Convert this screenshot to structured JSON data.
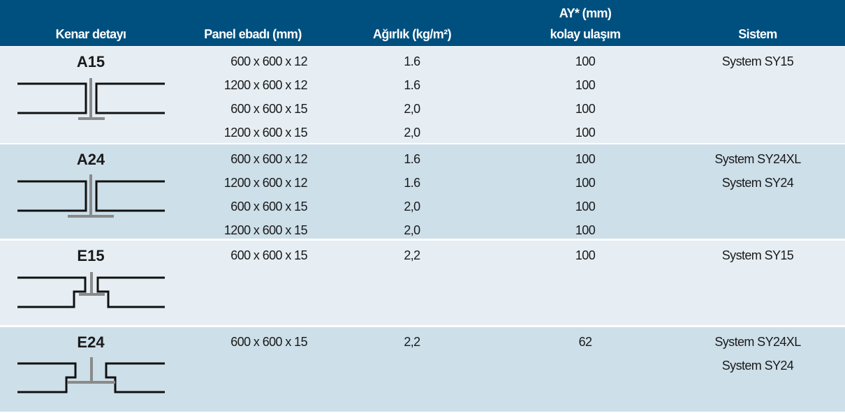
{
  "header": {
    "columns": [
      "Kenar detayı",
      "Panel ebadı (mm)",
      "Ağırlık (kg/m²)",
      [
        "AY* (mm)",
        "kolay ulaşım"
      ],
      "Sistem"
    ]
  },
  "groups": [
    {
      "label": "A15",
      "rows": [
        [
          "600 x 600 x 12",
          "1.6",
          "100"
        ],
        [
          "1200 x 600 x 12",
          "1.6",
          "100"
        ],
        [
          "600 x 600 x 15",
          "2,0",
          "100"
        ],
        [
          "1200 x 600 x 15",
          "2,0",
          "100"
        ]
      ],
      "systems": [
        "System SY15"
      ]
    },
    {
      "label": "A24",
      "rows": [
        [
          "600 x 600 x 12",
          "1.6",
          "100"
        ],
        [
          "1200 x 600 x 12",
          "1.6",
          "100"
        ],
        [
          "600 x 600 x 15",
          "2,0",
          "100"
        ],
        [
          "1200 x 600 x 15",
          "2,0",
          "100"
        ]
      ],
      "systems": [
        "System SY24XL",
        "System SY24"
      ]
    },
    {
      "label": "E15",
      "rows": [
        [
          "600 x 600 x 15",
          "2,2",
          "100"
        ]
      ],
      "systems": [
        "System SY15"
      ]
    },
    {
      "label": "E24",
      "rows": [
        [
          "600 x 600 x 15",
          "2,2",
          "62"
        ]
      ],
      "systems": [
        "System SY24XL",
        "System SY24"
      ]
    }
  ]
}
